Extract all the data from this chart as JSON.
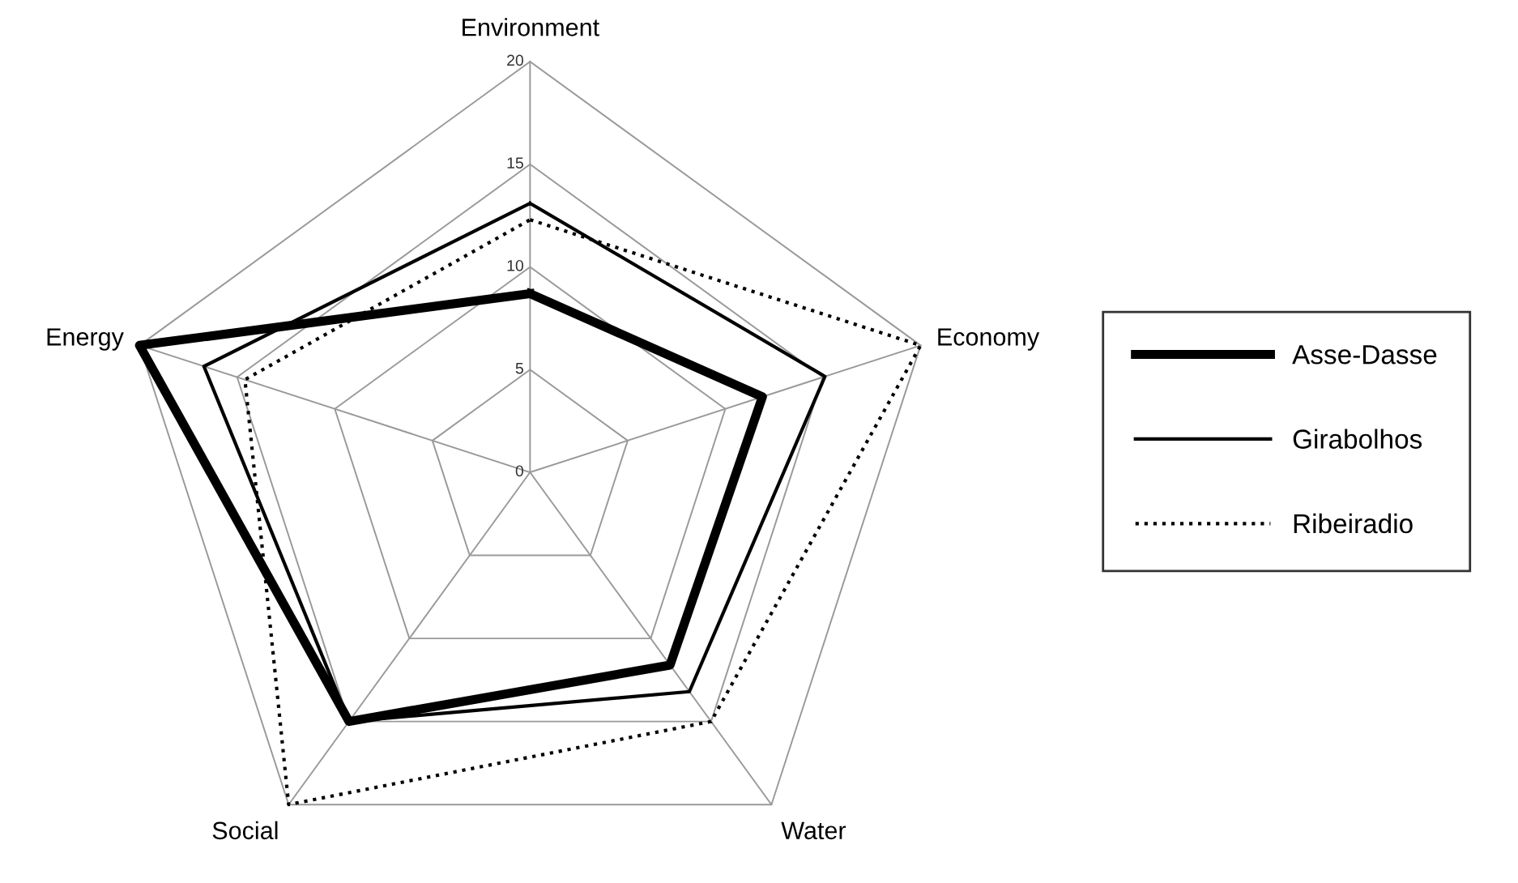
{
  "chart_data": {
    "type": "radar",
    "categories": [
      "Environment",
      "Economy",
      "Water",
      "Social",
      "Energy"
    ],
    "series": [
      {
        "name": "Asse-Dasse",
        "color": "#000000",
        "line_style": "solid",
        "values": [
          8.7,
          11.9,
          11.6,
          15,
          20
        ]
      },
      {
        "name": "Girabolhos",
        "color": "#000000",
        "line_style": "solid",
        "values": [
          13.1,
          15.1,
          13.2,
          15,
          16.7
        ]
      },
      {
        "name": "Ribeiradio",
        "color": "#000000",
        "line_style": "dotted",
        "values": [
          12.3,
          20,
          15,
          20,
          14.6
        ]
      }
    ],
    "ylim": [
      0,
      20
    ],
    "yticks": [
      0,
      5,
      10,
      15,
      20
    ],
    "grid": true,
    "legend": "right",
    "marker": "none"
  }
}
